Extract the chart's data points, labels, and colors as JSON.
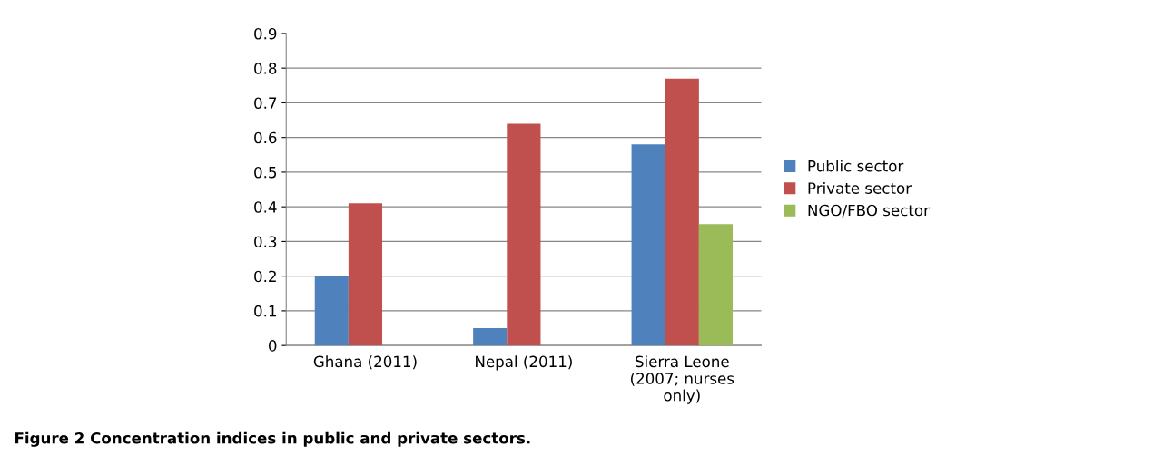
{
  "chart_data": {
    "type": "bar",
    "categories": [
      "Ghana (2011)",
      "Nepal (2011)",
      "Sierra Leone\n(2007; nurses\nonly)"
    ],
    "series": [
      {
        "name": "Public sector",
        "color": "#4f81bd",
        "values": [
          0.2,
          0.05,
          0.58
        ]
      },
      {
        "name": "Private sector",
        "color": "#c0504d",
        "values": [
          0.41,
          0.64,
          0.77
        ]
      },
      {
        "name": "NGO/FBO sector",
        "color": "#9bbb59",
        "values": [
          null,
          null,
          0.35
        ]
      }
    ],
    "ylim": [
      0,
      0.9
    ],
    "yticks": [
      {
        "value": 0,
        "label": "0"
      },
      0.1,
      0.2,
      0.3,
      0.4,
      0.5,
      0.6,
      0.7,
      0.8,
      0.9
    ],
    "grid": "y",
    "legend": "right",
    "annotations": [
      "Figure 2 Concentration indices in public and private sectors."
    ]
  }
}
